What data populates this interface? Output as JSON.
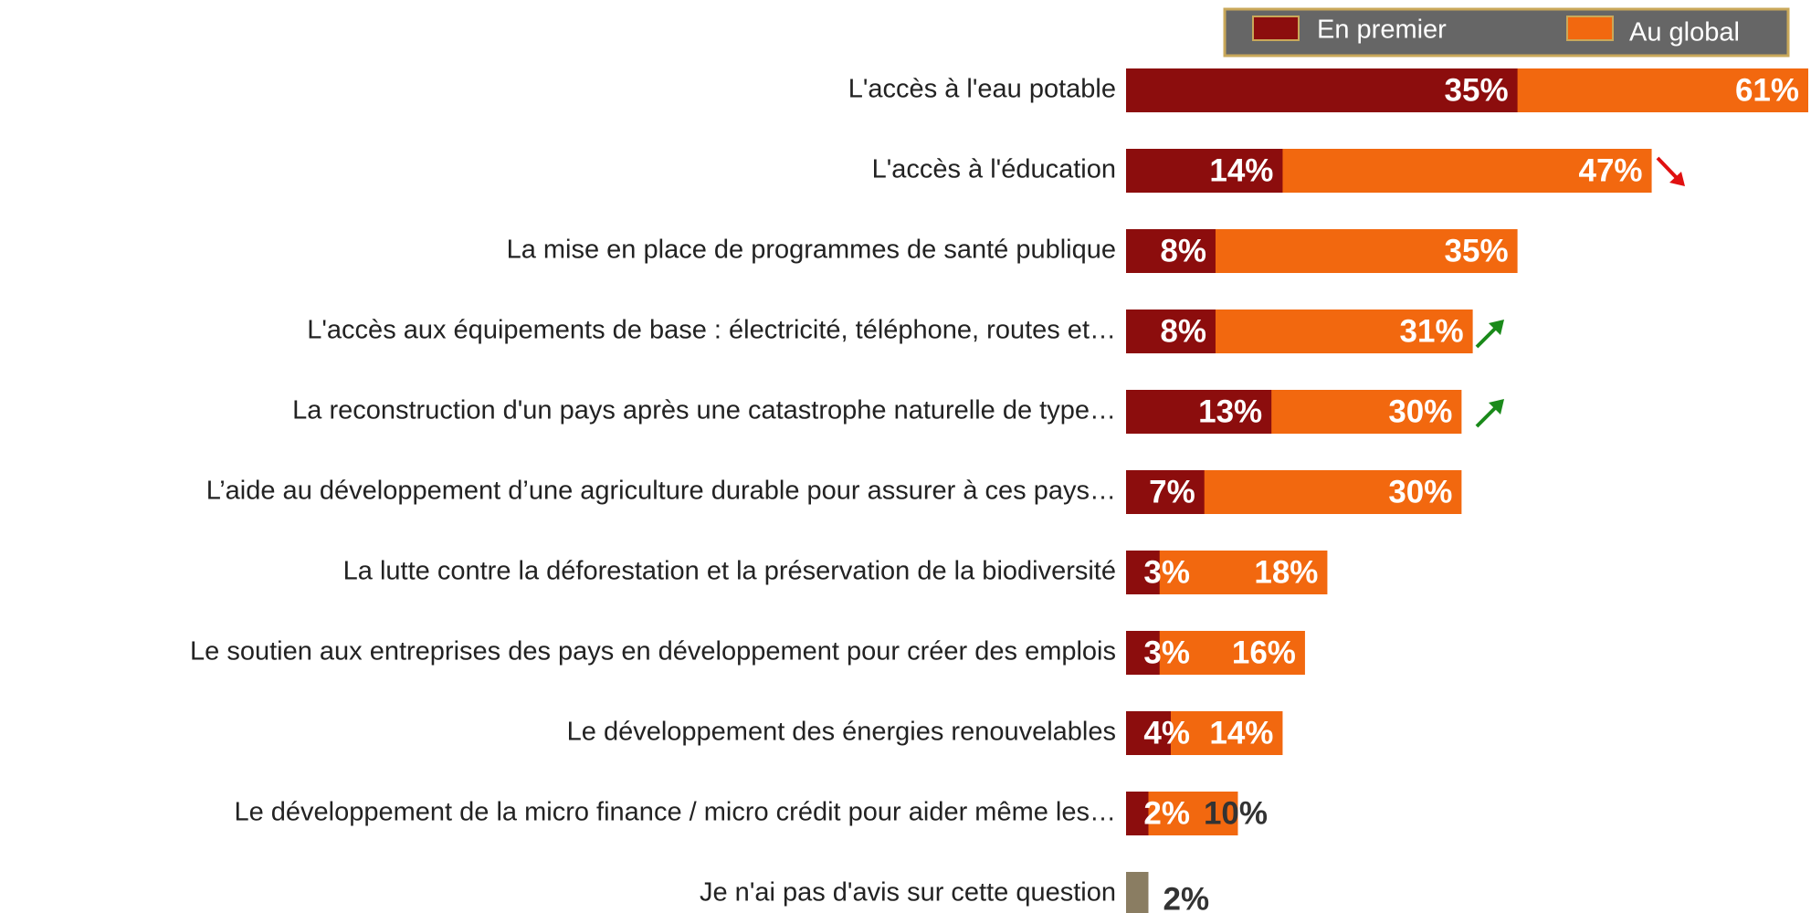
{
  "chart_data": {
    "type": "overlap-hbar",
    "categories": [
      "L'accès à l'eau potable",
      "L'accès à l'éducation",
      "La mise en place de programmes de santé publique",
      "L'accès aux équipements de base : électricité, téléphone, routes et…",
      "La reconstruction d'un pays  après une catastrophe naturelle de type…",
      "L’aide au développement  d’une agriculture durable pour assurer à ces pays…",
      "La lutte contre la déforestation et la préservation de la biodiversité",
      "Le soutien aux entreprises des pays en développement pour créer des emplois",
      "Le développement  des énergies renouvelables",
      "Le développement  de la micro finance / micro crédit pour aider même les…",
      "Je n'ai pas d'avis sur cette question"
    ],
    "series": [
      {
        "name": "En premier",
        "color": "#8c0d0d",
        "values": [
          35,
          14,
          8,
          8,
          13,
          7,
          3,
          3,
          4,
          2,
          null
        ],
        "value_labels": [
          "35%",
          "14%",
          "8%",
          "8%",
          "13%",
          "7%",
          "3%",
          "3%",
          "4%",
          "2%",
          null
        ]
      },
      {
        "name": "Au global",
        "color": "#f2680f",
        "colors": [
          "#f2680f",
          "#f2680f",
          "#f2680f",
          "#f2680f",
          "#f2680f",
          "#f2680f",
          "#f2680f",
          "#f2680f",
          "#f2680f",
          "#f2680f",
          "#8a7d62"
        ],
        "values": [
          61,
          47,
          35,
          31,
          30,
          30,
          18,
          16,
          14,
          10,
          2
        ],
        "value_labels": [
          "61%",
          "47%",
          "35%",
          "31%",
          "30%",
          "30%",
          "18%",
          "16%",
          "14%",
          "10%",
          "2%"
        ]
      }
    ],
    "xlim": [
      0,
      61
    ]
  }
}
